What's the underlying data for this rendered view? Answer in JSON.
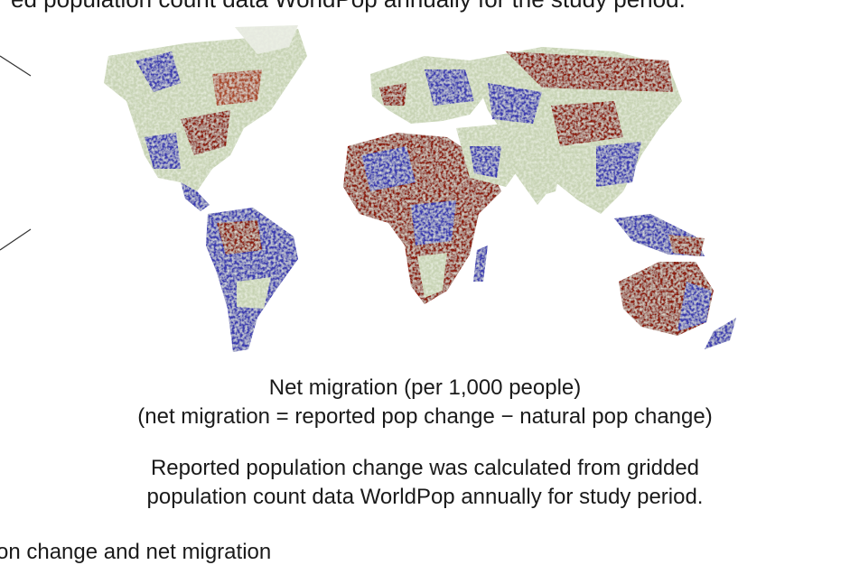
{
  "header": {
    "clipped_text": "ed population count data WorldPop annually for the study period."
  },
  "map": {
    "title": "",
    "colors": {
      "negative": "#8b1c10",
      "neutral": "#d8e0c8",
      "positive": "#3030a8",
      "ocean": "#ffffff"
    }
  },
  "caption": {
    "line1": "Net migration (per 1,000 people)",
    "line2": "(net migration = reported pop change − natural pop change)",
    "note1": "Reported population change was calculated from gridded",
    "note2": "population count data WorldPop annually for study period."
  },
  "footer": {
    "clipped_text": "on change and net migration"
  }
}
